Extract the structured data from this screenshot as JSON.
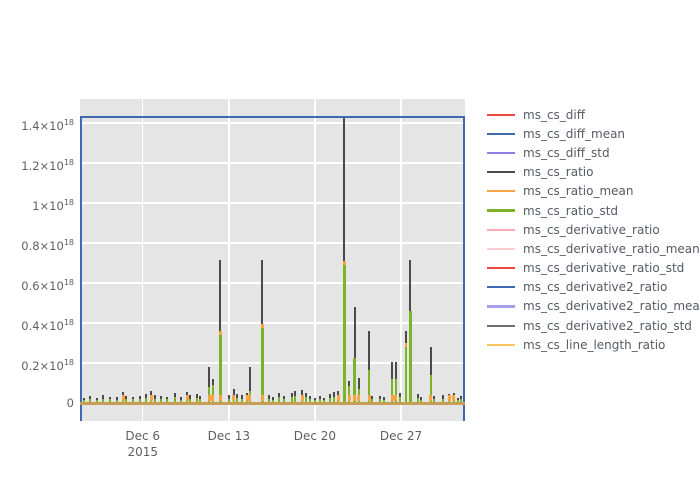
{
  "chart_data": {
    "type": "line",
    "title": "",
    "grid": true,
    "legend_position": "right",
    "plot_bg_color": "#e5e5e5",
    "grid_color": "#ffffff",
    "baseline_color": "#c79e55",
    "x_axis": {
      "unit": "date (December 2015)",
      "range_days": [
        0.9,
        32.2
      ],
      "ticks": [
        {
          "label": "Dec 6",
          "sublabel": "2015",
          "day": 6
        },
        {
          "label": "Dec 13",
          "sublabel": "",
          "day": 13
        },
        {
          "label": "Dec 20",
          "sublabel": "",
          "day": 20
        },
        {
          "label": "Dec 27",
          "sublabel": "",
          "day": 27
        }
      ]
    },
    "y_axis": {
      "unit": "×10^18",
      "range_e18": [
        -0.09,
        1.52
      ],
      "ticks": [
        {
          "value_e18": 0,
          "mantissa": "0",
          "exponent": ""
        },
        {
          "value_e18": 0.2,
          "mantissa": "0.2×10",
          "exponent": "18"
        },
        {
          "value_e18": 0.4,
          "mantissa": "0.4×10",
          "exponent": "18"
        },
        {
          "value_e18": 0.6,
          "mantissa": "0.6×10",
          "exponent": "18"
        },
        {
          "value_e18": 0.8,
          "mantissa": "0.8×10",
          "exponent": "18"
        },
        {
          "value_e18": 1,
          "mantissa": "1×10",
          "exponent": "18"
        },
        {
          "value_e18": 1.2,
          "mantissa": "1.2×10",
          "exponent": "18"
        },
        {
          "value_e18": 1.4,
          "mantissa": "1.4×10",
          "exponent": "18"
        }
      ]
    },
    "series": [
      {
        "label": "ms_cs_diff",
        "color": "#e8483f"
      },
      {
        "label": "ms_cs_diff_mean",
        "color": "#3f69b1"
      },
      {
        "label": "ms_cs_diff_std",
        "color": "#8c7fe8"
      },
      {
        "label": "ms_cs_ratio",
        "color": "#4a4a4a"
      },
      {
        "label": "ms_cs_ratio_mean",
        "color": "#f9a642"
      },
      {
        "label": "ms_cs_ratio_std",
        "color": "#7db32b"
      },
      {
        "label": "ms_cs_derivative_ratio",
        "color": "#f9aab4"
      },
      {
        "label": "ms_cs_derivative_ratio_mean",
        "color": "#fbc9d0"
      },
      {
        "label": "ms_cs_derivative_ratio_std",
        "color": "#e8483f"
      },
      {
        "label": "ms_cs_derivative2_ratio",
        "color": "#3f69b1"
      },
      {
        "label": "ms_cs_derivative2_ratio_mean",
        "color": "#a79ced"
      },
      {
        "label": "ms_cs_derivative2_ratio_std",
        "color": "#6e6e6e"
      },
      {
        "label": "ms_cs_line_length_ratio",
        "color": "#fac55e"
      }
    ],
    "constant_lines": [
      {
        "series": "ms_cs_diff_mean",
        "value_e18": 1.43,
        "color": "#3f69b1",
        "note": "horizontal line across full x-range with vertical drops to plot bottom at both range edges"
      },
      {
        "series": "ms_cs_line_length_ratio",
        "value_e18": 0,
        "color": "#c79e55",
        "note": "flat baseline at zero across full x-range"
      }
    ],
    "spikes_note": "each spike: [day_of_dec_2015, gray_top_e18 (ms_cs_ratio), green_top_e18 (ms_cs_ratio_std), flag 0=none 1=orange-base 2=orange-cap 3=both (ms_cs_ratio_mean)]",
    "spikes": [
      [
        1.2,
        0.025,
        0.015,
        0
      ],
      [
        1.7,
        0.035,
        0.02,
        0
      ],
      [
        2.3,
        0.025,
        0.015,
        0
      ],
      [
        2.8,
        0.04,
        0.022,
        0
      ],
      [
        3.3,
        0.03,
        0.018,
        0
      ],
      [
        3.9,
        0.03,
        0.016,
        0
      ],
      [
        4.4,
        0.055,
        0.03,
        1
      ],
      [
        4.65,
        0.035,
        0.02,
        0
      ],
      [
        5.2,
        0.03,
        0.018,
        0
      ],
      [
        5.8,
        0.035,
        0.02,
        0
      ],
      [
        6.25,
        0.045,
        0.025,
        0
      ],
      [
        6.7,
        0.06,
        0.032,
        1
      ],
      [
        7.0,
        0.04,
        0.022,
        0
      ],
      [
        7.5,
        0.035,
        0.02,
        0
      ],
      [
        8.0,
        0.03,
        0.018,
        0
      ],
      [
        8.6,
        0.05,
        0.028,
        0
      ],
      [
        9.1,
        0.03,
        0.016,
        0
      ],
      [
        9.6,
        0.055,
        0.03,
        1
      ],
      [
        9.85,
        0.04,
        0.022,
        0
      ],
      [
        10.4,
        0.045,
        0.025,
        0
      ],
      [
        10.65,
        0.035,
        0.02,
        0
      ],
      [
        11.4,
        0.18,
        0.08,
        1
      ],
      [
        11.7,
        0.12,
        0.09,
        1
      ],
      [
        12.3,
        0.715,
        0.34,
        3
      ],
      [
        13.05,
        0.04,
        0.022,
        0
      ],
      [
        13.4,
        0.07,
        0.04,
        1
      ],
      [
        13.65,
        0.045,
        0.025,
        0
      ],
      [
        14.05,
        0.04,
        0.022,
        0
      ],
      [
        14.5,
        0.05,
        0.028,
        1
      ],
      [
        14.7,
        0.18,
        0.06,
        1
      ],
      [
        15.7,
        0.715,
        0.375,
        3
      ],
      [
        16.3,
        0.04,
        0.022,
        0
      ],
      [
        16.6,
        0.03,
        0.017,
        0
      ],
      [
        17.1,
        0.05,
        0.028,
        0
      ],
      [
        17.45,
        0.035,
        0.02,
        0
      ],
      [
        18.1,
        0.05,
        0.028,
        0
      ],
      [
        18.4,
        0.06,
        0.033,
        0
      ],
      [
        18.95,
        0.065,
        0.036,
        1
      ],
      [
        19.25,
        0.05,
        0.028,
        0
      ],
      [
        19.6,
        0.035,
        0.02,
        0
      ],
      [
        20.0,
        0.025,
        0.014,
        0
      ],
      [
        20.4,
        0.035,
        0.02,
        0
      ],
      [
        20.75,
        0.025,
        0.014,
        0
      ],
      [
        21.2,
        0.045,
        0.025,
        0
      ],
      [
        21.55,
        0.055,
        0.03,
        0
      ],
      [
        21.9,
        0.06,
        0.033,
        1
      ],
      [
        22.4,
        1.43,
        0.69,
        2
      ],
      [
        22.8,
        0.11,
        0.085,
        1
      ],
      [
        23.25,
        0.48,
        0.225,
        1
      ],
      [
        23.55,
        0.125,
        0.07,
        1
      ],
      [
        24.4,
        0.36,
        0.165,
        1
      ],
      [
        24.65,
        0.035,
        0.02,
        0
      ],
      [
        25.3,
        0.035,
        0.02,
        0
      ],
      [
        25.6,
        0.03,
        0.017,
        0
      ],
      [
        26.3,
        0.205,
        0.12,
        1
      ],
      [
        26.55,
        0.205,
        0.12,
        1
      ],
      [
        26.9,
        0.05,
        0.028,
        0
      ],
      [
        27.4,
        0.36,
        0.28,
        2
      ],
      [
        27.75,
        0.715,
        0.46,
        0
      ],
      [
        28.4,
        0.045,
        0.025,
        0
      ],
      [
        28.65,
        0.03,
        0.017,
        0
      ],
      [
        29.4,
        0.28,
        0.14,
        1
      ],
      [
        29.65,
        0.035,
        0.02,
        0
      ],
      [
        30.4,
        0.04,
        0.022,
        0
      ],
      [
        30.9,
        0.045,
        0.025,
        1
      ],
      [
        31.3,
        0.05,
        0.028,
        1
      ],
      [
        31.6,
        0.025,
        0.014,
        0
      ],
      [
        31.9,
        0.035,
        0.02,
        0
      ]
    ],
    "spike_colors": {
      "gray": "#4a4a4a",
      "green": "#7db32b",
      "orange": "#f9a642"
    }
  }
}
